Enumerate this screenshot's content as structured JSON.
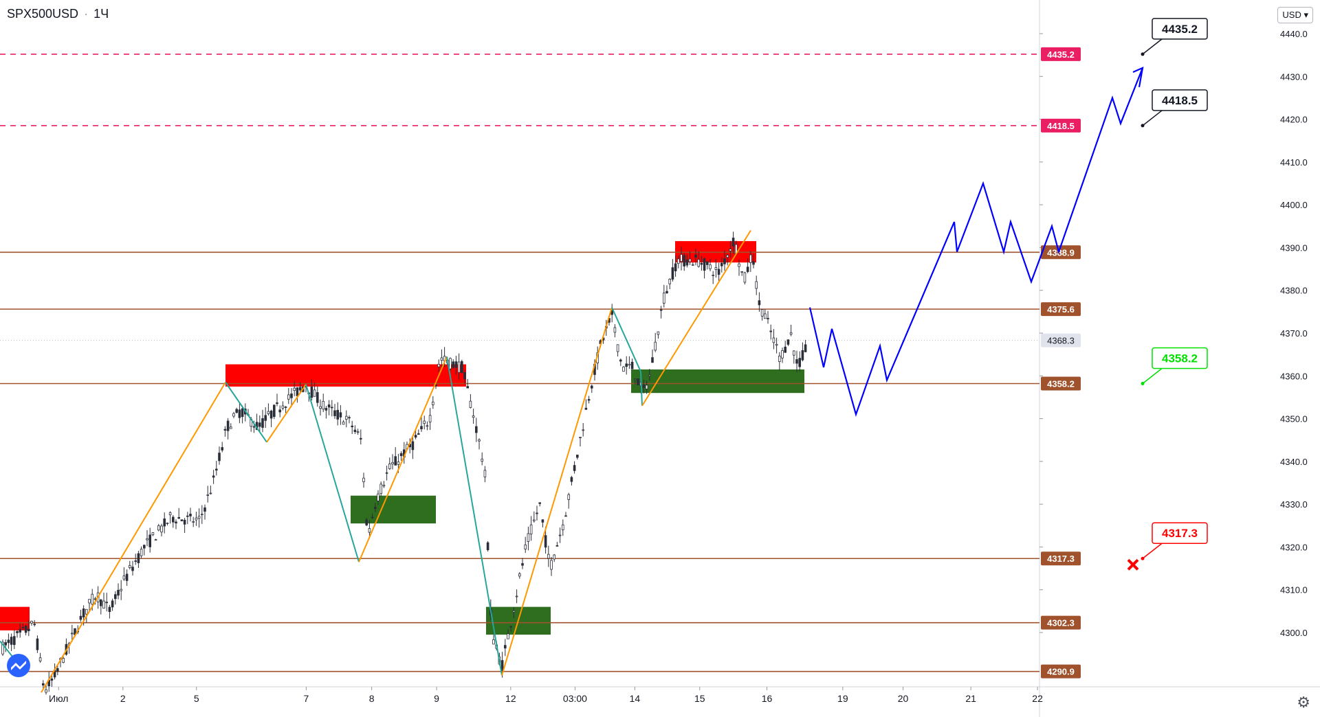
{
  "symbol": "SPX500USD",
  "interval": "1Ч",
  "currency": "USD",
  "icons": {
    "currency_dropdown": "chevron-down-icon",
    "settings": "gear-icon",
    "logo": "tradingview-logo-icon"
  },
  "colors": {
    "resistance": "#e91e63",
    "level": "#a0522d",
    "supply_zone": "#ff0000",
    "demand_zone": "#2e6e1e",
    "forecast": "#0000ff",
    "zigzag_up": "#ff9800",
    "zigzag_down": "#26a69a",
    "candle": "#2a2e39",
    "stop": "#ff0000"
  },
  "chart_data": {
    "type": "line",
    "x_ticks": [
      "Июл",
      "2",
      "5",
      "7",
      "8",
      "9",
      "12",
      "03:00",
      "14",
      "15",
      "16",
      "19",
      "20",
      "21",
      "22"
    ],
    "y_ticks": [
      4300,
      4310,
      4320,
      4330,
      4340,
      4350,
      4360,
      4370,
      4380,
      4390,
      4400,
      4410,
      4420,
      4430,
      4440
    ],
    "ylim": [
      4286,
      4444
    ],
    "grid": false,
    "current_price": "4368.3",
    "levels": [
      {
        "value": 4435.2,
        "label": "4435.2",
        "style": "dashed",
        "kind": "target"
      },
      {
        "value": 4418.5,
        "label": "4418.5",
        "style": "dashed",
        "kind": "target"
      },
      {
        "value": 4388.9,
        "label": "4388.9",
        "style": "solid",
        "kind": "level"
      },
      {
        "value": 4375.6,
        "label": "4375.6",
        "style": "solid",
        "kind": "level"
      },
      {
        "value": 4358.2,
        "label": "4358.2",
        "style": "solid",
        "kind": "level"
      },
      {
        "value": 4317.3,
        "label": "4317.3",
        "style": "solid",
        "kind": "level"
      },
      {
        "value": 4302.3,
        "label": "4302.3",
        "style": "solid",
        "kind": "level"
      },
      {
        "value": 4290.9,
        "label": "4290.9",
        "style": "solid",
        "kind": "level"
      }
    ],
    "callouts": [
      {
        "label": "4435.2",
        "value": 4435.2,
        "style": "black"
      },
      {
        "label": "4418.5",
        "value": 4418.5,
        "style": "black"
      },
      {
        "label": "4358.2",
        "value": 4358.2,
        "style": "green"
      },
      {
        "label": "4317.3",
        "value": 4317.3,
        "style": "red"
      }
    ]
  }
}
